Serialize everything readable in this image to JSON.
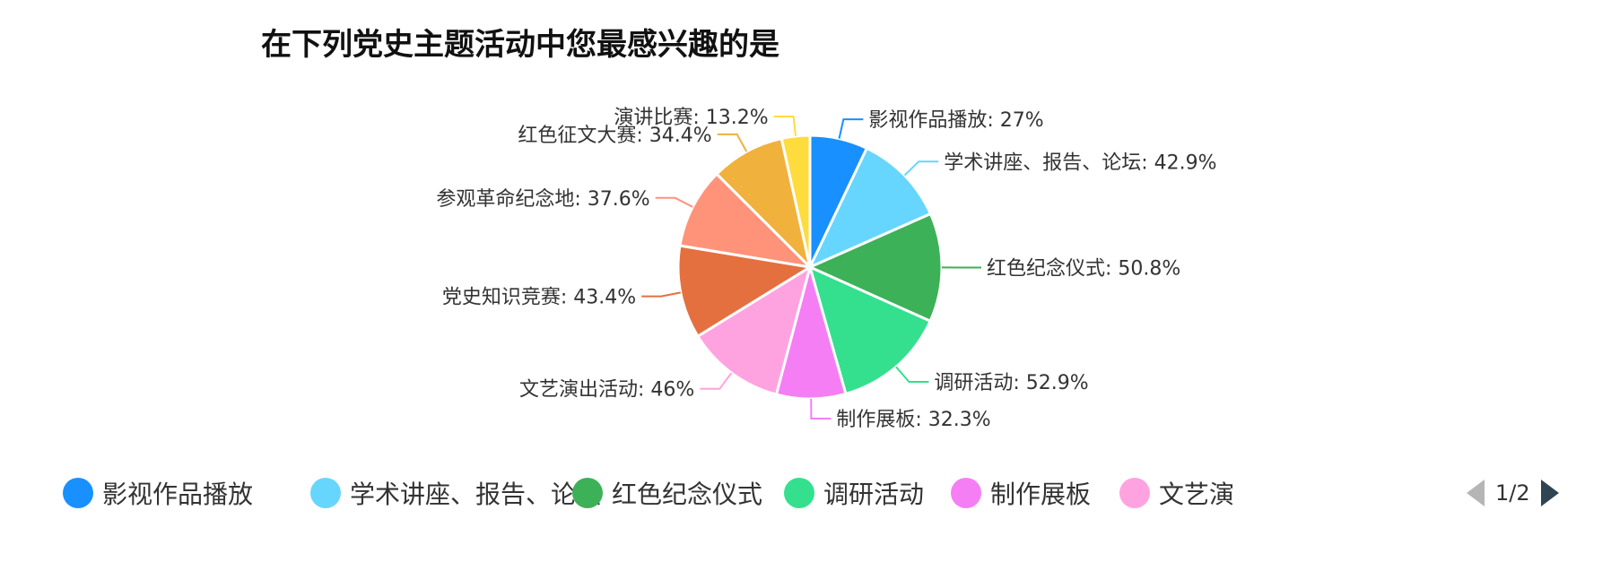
{
  "chart_data": {
    "type": "pie",
    "title": "在下列党史主题活动中您最感兴趣的是",
    "slices": [
      {
        "name": "影视作品播放",
        "value": 27,
        "label": "影视作品播放: 27%",
        "color": "#1890ff"
      },
      {
        "name": "学术讲座、报告、论坛",
        "value": 42.9,
        "label": "学术讲座、报告、论坛: 42.9%",
        "color": "#66d6ff"
      },
      {
        "name": "红色纪念仪式",
        "value": 50.8,
        "label": "红色纪念仪式: 50.8%",
        "color": "#3cb157"
      },
      {
        "name": "调研活动",
        "value": 52.9,
        "label": "调研活动: 52.9%",
        "color": "#34e08e"
      },
      {
        "name": "制作展板",
        "value": 32.3,
        "label": "制作展板: 32.3%",
        "color": "#f57ef5"
      },
      {
        "name": "文艺演出活动",
        "value": 46,
        "label": "文艺演出活动: 46%",
        "color": "#ffa3e0"
      },
      {
        "name": "党史知识竞赛",
        "value": 43.4,
        "label": "党史知识竞赛: 43.4%",
        "color": "#e4703f"
      },
      {
        "name": "参观革命纪念地",
        "value": 37.6,
        "label": "参观革命纪念地: 37.6%",
        "color": "#ff937a"
      },
      {
        "name": "红色征文大赛",
        "value": 34.4,
        "label": "红色征文大赛: 34.4%",
        "color": "#f0b13d"
      },
      {
        "name": "演讲比赛",
        "value": 13.2,
        "label": "演讲比赛: 13.2%",
        "color": "#ffdc3d"
      }
    ],
    "legend": {
      "placement": "bottom",
      "visible_items": [
        "影视作品播放",
        "学术讲座、报告、论坛",
        "红色纪念仪式",
        "调研活动",
        "制作展板",
        "文艺演"
      ],
      "page_indicator": "1/2"
    }
  }
}
